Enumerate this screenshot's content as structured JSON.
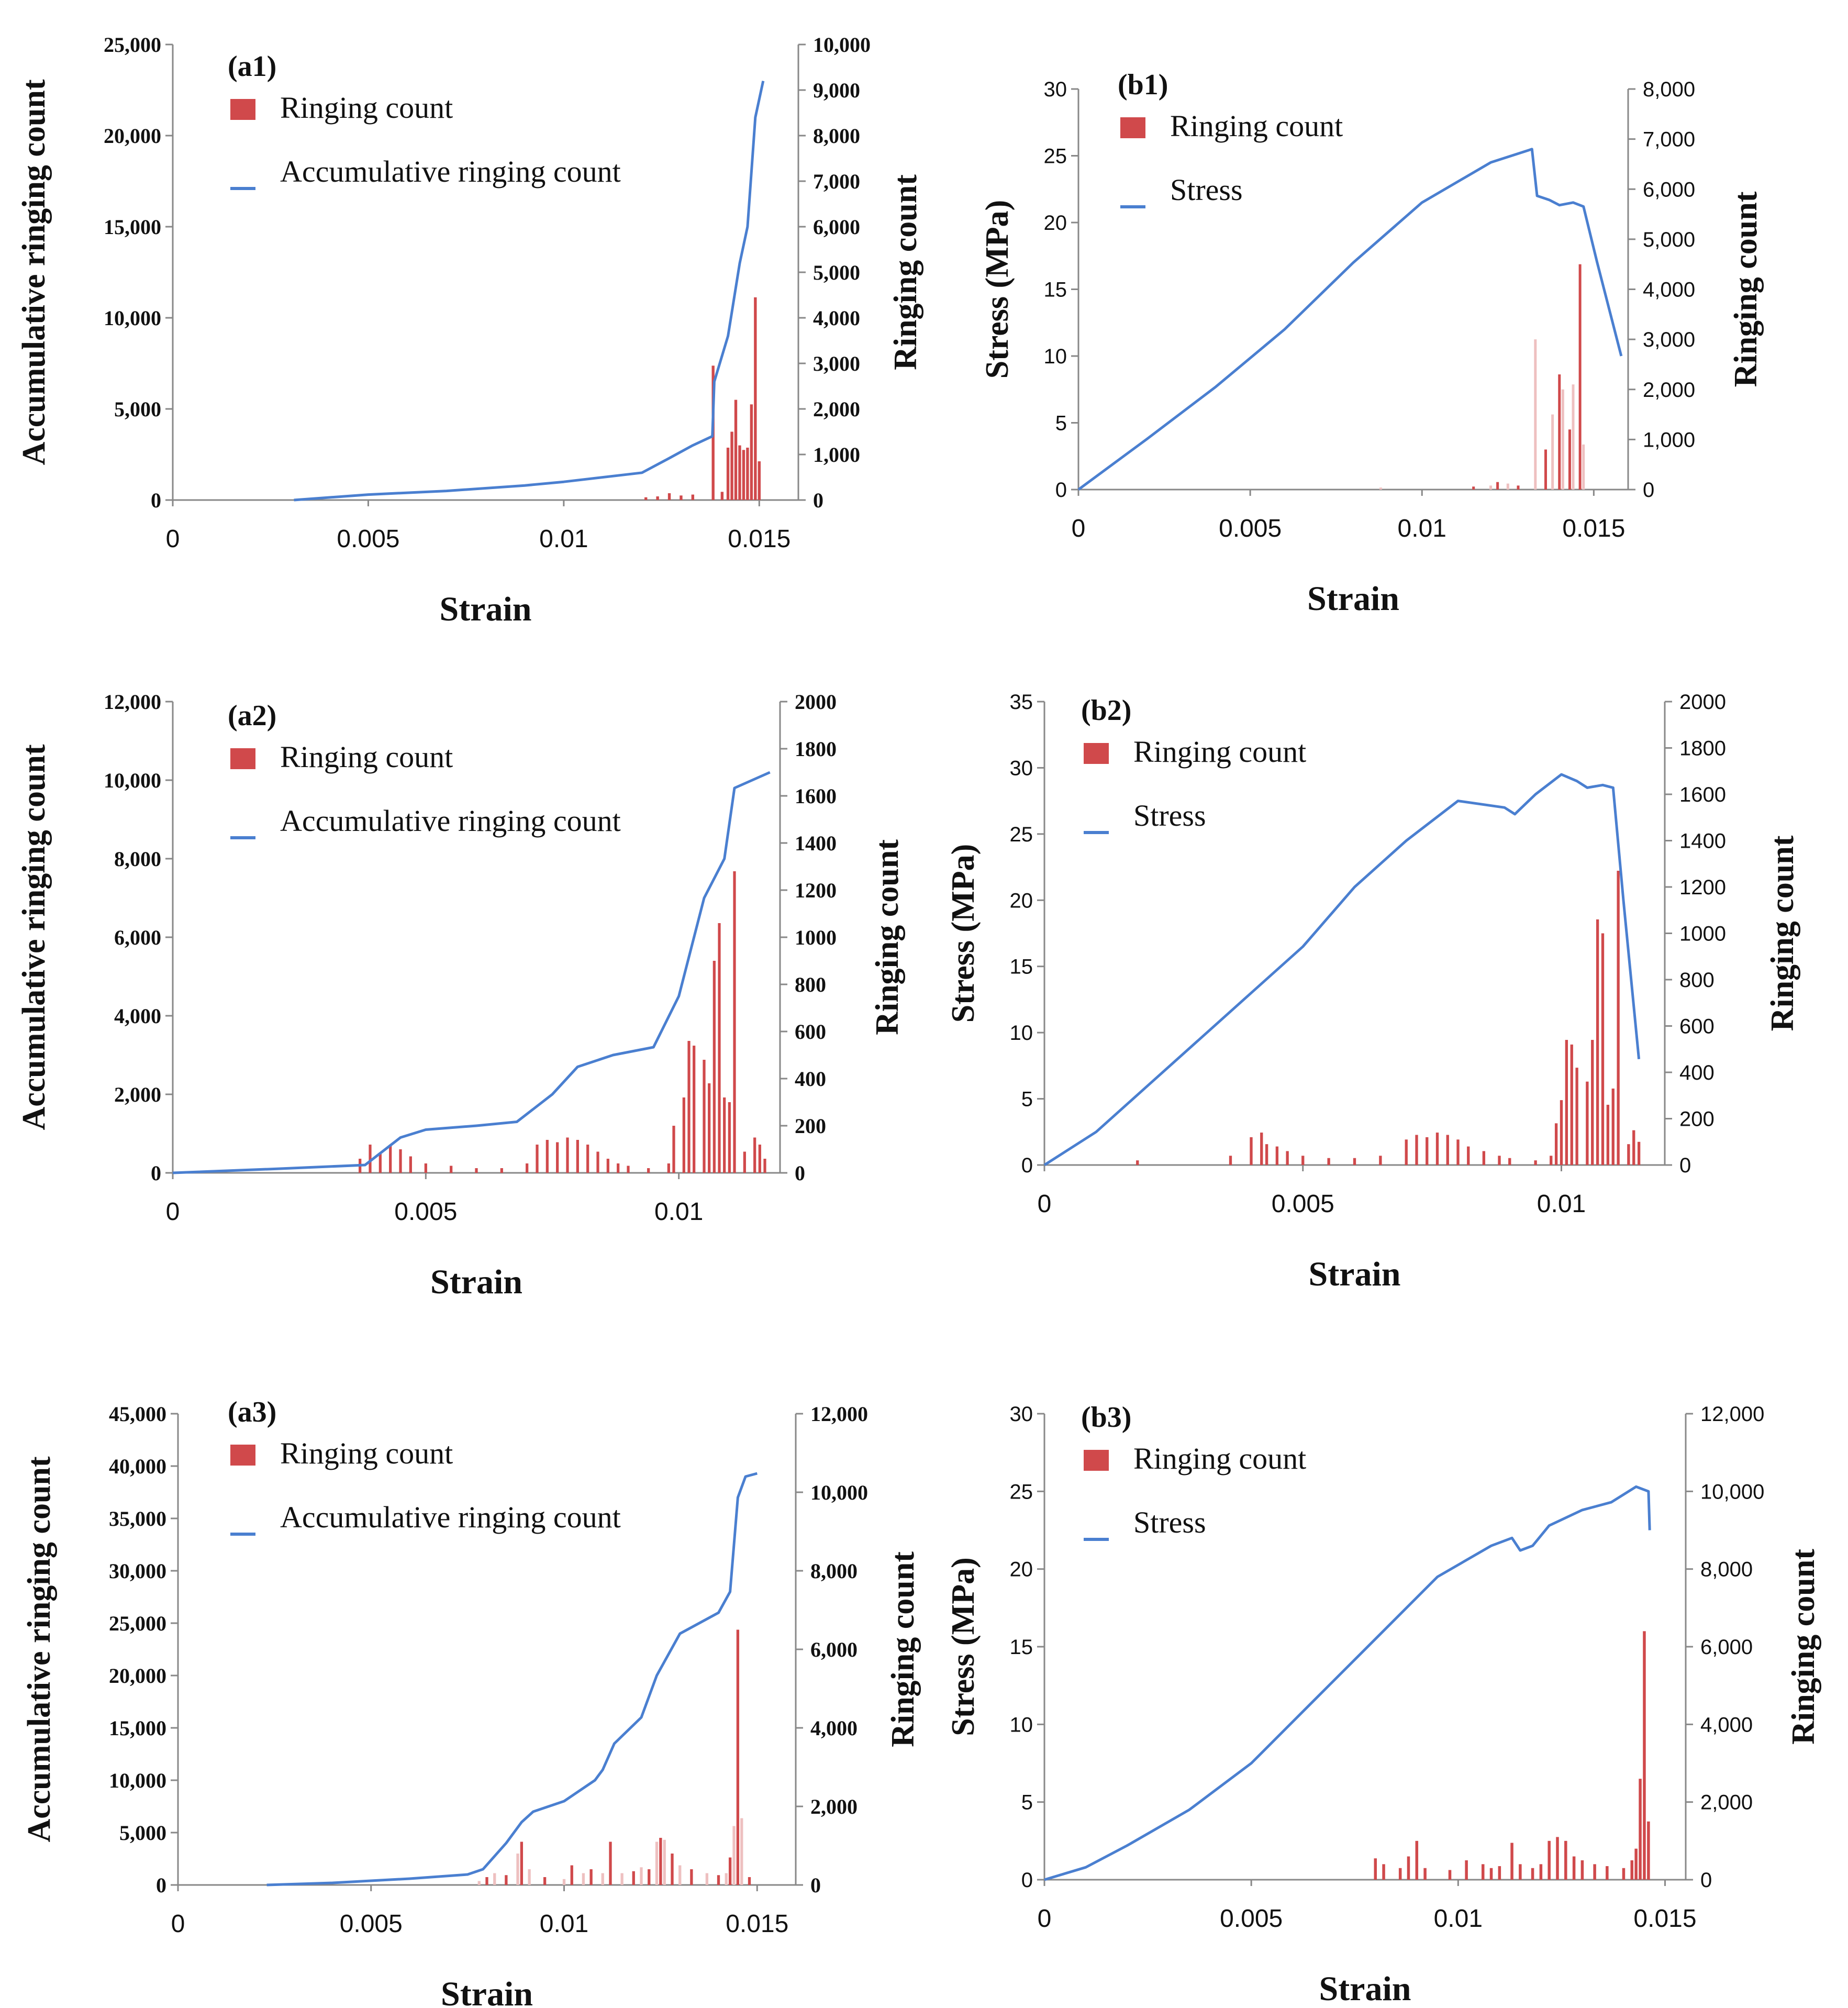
{
  "colors": {
    "bar": "#d0494b",
    "bar_light": "#eec0c0",
    "line": "#4a7fd0",
    "axis": "#888888",
    "text": "#111111"
  },
  "chart_data": [
    {
      "id": "a1",
      "panel_label": "(a1)",
      "type": "bar+line",
      "font": "serif",
      "xlabel": "Strain",
      "ylabel_left": "Accumulative ringing count",
      "ylabel_right": "Ringing count",
      "xlim": [
        0,
        0.016
      ],
      "xticks": [
        0,
        0.005,
        0.01,
        0.015
      ],
      "xtick_labels": [
        "0",
        "0.005",
        "0.01",
        "0.015"
      ],
      "ylim_left": [
        0,
        25000
      ],
      "yticks_left": [
        0,
        5000,
        10000,
        15000,
        20000,
        25000
      ],
      "ytick_labels_left": [
        "0",
        "5,000",
        "10,000",
        "15,000",
        "20,000",
        "25,000"
      ],
      "ylim_right": [
        0,
        10000
      ],
      "yticks_right": [
        0,
        1000,
        2000,
        3000,
        4000,
        5000,
        6000,
        7000,
        8000,
        9000,
        10000
      ],
      "ytick_labels_right": [
        "0",
        "1,000",
        "2,000",
        "3,000",
        "4,000",
        "5,000",
        "6,000",
        "7,000",
        "8,000",
        "9,000",
        "10,000"
      ],
      "legend": [
        "Ringing count",
        "Accumulative ringing count"
      ],
      "line": {
        "name": "Accumulative ringing count",
        "x": [
          0.0031,
          0.005,
          0.007,
          0.009,
          0.01,
          0.012,
          0.0127,
          0.0133,
          0.0138,
          0.01385,
          0.0142,
          0.0145,
          0.0147,
          0.0149,
          0.0151
        ],
        "y": [
          0,
          300,
          500,
          800,
          1000,
          1500,
          2300,
          3000,
          3500,
          6500,
          9000,
          13000,
          15000,
          21000,
          23000
        ]
      },
      "bars": {
        "name": "Ringing count",
        "x": [
          0.0121,
          0.0124,
          0.0127,
          0.013,
          0.0133,
          0.01382,
          0.01405,
          0.0142,
          0.0143,
          0.0144,
          0.0145,
          0.0146,
          0.0147,
          0.0148,
          0.0149,
          0.015
        ],
        "y": [
          60,
          80,
          150,
          100,
          120,
          2950,
          180,
          1150,
          1500,
          2200,
          1200,
          1100,
          1150,
          2100,
          4450,
          850
        ]
      }
    },
    {
      "id": "b1",
      "panel_label": "(b1)",
      "type": "bar+line",
      "font": "sans",
      "xlabel": "Strain",
      "ylabel_left": "Stress (MPa)",
      "ylabel_right": "Ringing count",
      "xlim": [
        0,
        0.016
      ],
      "xticks": [
        0,
        0.005,
        0.01,
        0.015
      ],
      "xtick_labels": [
        "0",
        "0.005",
        "0.01",
        "0.015"
      ],
      "ylim_left": [
        0,
        30
      ],
      "yticks_left": [
        0,
        5,
        10,
        15,
        20,
        25,
        30
      ],
      "ytick_labels_left": [
        "0",
        "5",
        "10",
        "15",
        "20",
        "25",
        "30"
      ],
      "ylim_right": [
        0,
        8000
      ],
      "yticks_right": [
        0,
        1000,
        2000,
        3000,
        4000,
        5000,
        6000,
        7000,
        8000
      ],
      "ytick_labels_right": [
        "0",
        "1,000",
        "2,000",
        "3,000",
        "4,000",
        "5,000",
        "6,000",
        "7,000",
        "8,000"
      ],
      "legend": [
        "Ringing count",
        "Stress"
      ],
      "line": {
        "name": "Stress",
        "x": [
          0,
          0.002,
          0.004,
          0.006,
          0.008,
          0.01,
          0.012,
          0.0132,
          0.01335,
          0.0137,
          0.014,
          0.0144,
          0.0147,
          0.0151,
          0.0158
        ],
        "y": [
          0,
          3.8,
          7.7,
          12,
          17,
          21.5,
          24.5,
          25.5,
          22,
          21.7,
          21.3,
          21.5,
          21.2,
          17,
          10
        ]
      },
      "bars": {
        "name": "Ringing count",
        "x": [
          0.0088,
          0.0115,
          0.012,
          0.0122,
          0.0125,
          0.0128,
          0.0133,
          0.0136,
          0.0138,
          0.014,
          0.0141,
          0.0143,
          0.0144,
          0.0146,
          0.0147
        ],
        "y": [
          40,
          60,
          80,
          150,
          120,
          80,
          3000,
          800,
          1500,
          2300,
          2000,
          1200,
          2100,
          4500,
          900
        ]
      }
    },
    {
      "id": "a2",
      "panel_label": "(a2)",
      "type": "bar+line",
      "font": "serif",
      "xlabel": "Strain",
      "ylabel_left": "Accumulative ringing count",
      "ylabel_right": "Ringing count",
      "xlim": [
        0,
        0.012
      ],
      "xticks": [
        0,
        0.005,
        0.01
      ],
      "xtick_labels": [
        "0",
        "0.005",
        "0.01"
      ],
      "ylim_left": [
        0,
        12000
      ],
      "yticks_left": [
        0,
        2000,
        4000,
        6000,
        8000,
        10000,
        12000
      ],
      "ytick_labels_left": [
        "0",
        "2,000",
        "4,000",
        "6,000",
        "8,000",
        "10,000",
        "12,000"
      ],
      "ylim_right": [
        0,
        2000
      ],
      "yticks_right": [
        0,
        200,
        400,
        600,
        800,
        1000,
        1200,
        1400,
        1600,
        1800,
        2000
      ],
      "ytick_labels_right": [
        "0",
        "200",
        "400",
        "600",
        "800",
        "1000",
        "1200",
        "1400",
        "1600",
        "1800",
        "2000"
      ],
      "legend": [
        "Ringing count",
        "Accumulative ringing count"
      ],
      "line": {
        "name": "Accumulative ringing count",
        "x": [
          0,
          0.002,
          0.0038,
          0.0045,
          0.005,
          0.006,
          0.0068,
          0.0075,
          0.008,
          0.0087,
          0.0095,
          0.01,
          0.0105,
          0.0109,
          0.0111,
          0.0118
        ],
        "y": [
          0,
          100,
          200,
          900,
          1100,
          1200,
          1300,
          2000,
          2700,
          3000,
          3200,
          4500,
          7000,
          8000,
          9800,
          10200
        ]
      },
      "bars": {
        "name": "Ringing count",
        "x": [
          0.0037,
          0.0039,
          0.0041,
          0.0043,
          0.0045,
          0.0047,
          0.005,
          0.0055,
          0.006,
          0.0065,
          0.007,
          0.0072,
          0.0074,
          0.0076,
          0.0078,
          0.008,
          0.0082,
          0.0084,
          0.0086,
          0.0088,
          0.009,
          0.0094,
          0.0098,
          0.0099,
          0.0101,
          0.0102,
          0.0103,
          0.0105,
          0.0106,
          0.0107,
          0.0108,
          0.0109,
          0.011,
          0.0111,
          0.0113,
          0.0115,
          0.0116,
          0.0117
        ],
        "y": [
          60,
          120,
          80,
          120,
          100,
          70,
          40,
          30,
          20,
          20,
          40,
          120,
          140,
          130,
          150,
          140,
          120,
          90,
          60,
          40,
          30,
          20,
          40,
          200,
          320,
          560,
          540,
          480,
          380,
          900,
          1060,
          320,
          300,
          1280,
          90,
          150,
          120,
          60
        ]
      }
    },
    {
      "id": "b2",
      "panel_label": "(b2)",
      "type": "bar+line",
      "font": "sans",
      "xlabel": "Strain",
      "ylabel_left": "Stress (MPa)",
      "ylabel_right": "Ringing count",
      "xlim": [
        0,
        0.012
      ],
      "xticks": [
        0,
        0.005,
        0.01
      ],
      "xtick_labels": [
        "0",
        "0.005",
        "0.01"
      ],
      "ylim_left": [
        0,
        35
      ],
      "yticks_left": [
        0,
        5,
        10,
        15,
        20,
        25,
        30,
        35
      ],
      "ytick_labels_left": [
        "0",
        "5",
        "10",
        "15",
        "20",
        "25",
        "30",
        "35"
      ],
      "ylim_right": [
        0,
        2000
      ],
      "yticks_right": [
        0,
        200,
        400,
        600,
        800,
        1000,
        1200,
        1400,
        1600,
        1800,
        2000
      ],
      "ytick_labels_right": [
        "0",
        "200",
        "400",
        "600",
        "800",
        "1000",
        "1200",
        "1400",
        "1600",
        "1800",
        "2000"
      ],
      "legend": [
        "Ringing count",
        "Stress"
      ],
      "line": {
        "name": "Stress",
        "x": [
          0,
          0.001,
          0.002,
          0.003,
          0.004,
          0.005,
          0.006,
          0.007,
          0.008,
          0.0089,
          0.0091,
          0.0095,
          0.01,
          0.0103,
          0.0105,
          0.0108,
          0.011,
          0.0112,
          0.0115
        ],
        "y": [
          0,
          2.5,
          6,
          9.5,
          13,
          16.5,
          21,
          24.5,
          27.5,
          27,
          26.5,
          28,
          29.5,
          29,
          28.5,
          28.7,
          28.5,
          20,
          8
        ]
      },
      "bars": {
        "name": "Ringing count",
        "x": [
          0.0018,
          0.0036,
          0.004,
          0.0042,
          0.0043,
          0.0045,
          0.0047,
          0.005,
          0.0055,
          0.006,
          0.0065,
          0.007,
          0.0072,
          0.0074,
          0.0076,
          0.0078,
          0.008,
          0.0082,
          0.0085,
          0.0088,
          0.009,
          0.0095,
          0.0098,
          0.0099,
          0.01,
          0.0101,
          0.0102,
          0.0103,
          0.0105,
          0.0106,
          0.0107,
          0.0108,
          0.0109,
          0.011,
          0.0111,
          0.0113,
          0.0114,
          0.0115
        ],
        "y": [
          20,
          40,
          120,
          140,
          90,
          80,
          60,
          40,
          30,
          30,
          40,
          110,
          130,
          120,
          140,
          130,
          110,
          80,
          60,
          40,
          30,
          20,
          40,
          180,
          280,
          540,
          520,
          420,
          360,
          540,
          1060,
          1000,
          260,
          330,
          1270,
          90,
          150,
          100
        ]
      }
    },
    {
      "id": "a3",
      "panel_label": "(a3)",
      "type": "bar+line",
      "font": "serif",
      "xlabel": "Strain",
      "ylabel_left": "Accumulative ringing count",
      "ylabel_right": "Ringing count",
      "xlim": [
        0,
        0.016
      ],
      "xticks": [
        0,
        0.005,
        0.01,
        0.015
      ],
      "xtick_labels": [
        "0",
        "0.005",
        "0.01",
        "0.015"
      ],
      "ylim_left": [
        0,
        45000
      ],
      "yticks_left": [
        0,
        5000,
        10000,
        15000,
        20000,
        25000,
        30000,
        35000,
        40000,
        45000
      ],
      "ytick_labels_left": [
        "0",
        "5,000",
        "10,000",
        "15,000",
        "20,000",
        "25,000",
        "30,000",
        "35,000",
        "40,000",
        "45,000"
      ],
      "ylim_right": [
        0,
        12000
      ],
      "yticks_right": [
        0,
        2000,
        4000,
        6000,
        8000,
        10000,
        12000
      ],
      "ytick_labels_right": [
        "0",
        "2,000",
        "4,000",
        "6,000",
        "8,000",
        "10,000",
        "12,000"
      ],
      "legend": [
        "Ringing count",
        "Accumulative ringing count"
      ],
      "line": {
        "name": "Accumulative ringing count",
        "x": [
          0.0023,
          0.004,
          0.006,
          0.0075,
          0.0079,
          0.0085,
          0.0089,
          0.0092,
          0.01,
          0.0108,
          0.011,
          0.0113,
          0.012,
          0.0124,
          0.013,
          0.014,
          0.0143,
          0.0145,
          0.0147,
          0.015
        ],
        "y": [
          0,
          200,
          600,
          1000,
          1500,
          4000,
          6000,
          7000,
          8000,
          10000,
          11000,
          13500,
          16000,
          20000,
          24000,
          26000,
          28000,
          37000,
          39000,
          39300
        ]
      },
      "bars": {
        "name": "Ringing count",
        "x": [
          0.0078,
          0.008,
          0.0082,
          0.0085,
          0.0088,
          0.0089,
          0.0091,
          0.0095,
          0.01,
          0.0102,
          0.0105,
          0.0107,
          0.011,
          0.0112,
          0.0115,
          0.0118,
          0.012,
          0.0122,
          0.0124,
          0.0125,
          0.0126,
          0.0128,
          0.013,
          0.0133,
          0.0137,
          0.014,
          0.0142,
          0.0143,
          0.0144,
          0.0145,
          0.0146,
          0.0148
        ],
        "y": [
          100,
          200,
          300,
          250,
          800,
          1100,
          400,
          200,
          150,
          500,
          300,
          400,
          300,
          1100,
          300,
          350,
          450,
          400,
          1100,
          1200,
          1150,
          800,
          500,
          400,
          300,
          250,
          300,
          700,
          1500,
          6500,
          1700,
          200
        ]
      }
    },
    {
      "id": "b3",
      "panel_label": "(b3)",
      "type": "bar+line",
      "font": "sans",
      "xlabel": "Strain",
      "ylabel_left": "Stress (MPa)",
      "ylabel_right": "Ringing count",
      "xlim": [
        0,
        0.0155
      ],
      "xticks": [
        0,
        0.005,
        0.01,
        0.015
      ],
      "xtick_labels": [
        "0",
        "0.005",
        "0.01",
        "0.015"
      ],
      "ylim_left": [
        0,
        30
      ],
      "yticks_left": [
        0,
        5,
        10,
        15,
        20,
        25,
        30
      ],
      "ytick_labels_left": [
        "0",
        "5",
        "10",
        "15",
        "20",
        "25",
        "30"
      ],
      "ylim_right": [
        0,
        12000
      ],
      "yticks_right": [
        0,
        2000,
        4000,
        6000,
        8000,
        10000,
        12000
      ],
      "ytick_labels_right": [
        "0",
        "2,000",
        "4,000",
        "6,000",
        "8,000",
        "10,000",
        "12,000"
      ],
      "legend": [
        "Ringing count",
        "Stress"
      ],
      "line": {
        "name": "Stress",
        "x": [
          0,
          0.001,
          0.002,
          0.0035,
          0.005,
          0.0065,
          0.008,
          0.0095,
          0.0108,
          0.0113,
          0.0115,
          0.0118,
          0.0122,
          0.013,
          0.0137,
          0.0143,
          0.0146,
          0.01463
        ],
        "y": [
          0,
          0.8,
          2.2,
          4.5,
          7.5,
          11.5,
          15.5,
          19.5,
          21.5,
          22,
          21.2,
          21.5,
          22.8,
          23.8,
          24.3,
          25.3,
          25,
          22.5
        ]
      },
      "bars": {
        "name": "Ringing count",
        "x": [
          0.008,
          0.0082,
          0.0086,
          0.0088,
          0.009,
          0.0092,
          0.0098,
          0.0102,
          0.0106,
          0.0108,
          0.011,
          0.0113,
          0.0115,
          0.0118,
          0.012,
          0.0122,
          0.0124,
          0.0126,
          0.0128,
          0.013,
          0.0133,
          0.0136,
          0.014,
          0.0142,
          0.0143,
          0.0144,
          0.0145,
          0.0146
        ],
        "y": [
          550,
          400,
          300,
          600,
          1000,
          300,
          250,
          500,
          400,
          300,
          350,
          950,
          400,
          300,
          400,
          1000,
          1100,
          1000,
          600,
          500,
          400,
          350,
          300,
          500,
          800,
          2600,
          6400,
          1500
        ]
      }
    }
  ]
}
